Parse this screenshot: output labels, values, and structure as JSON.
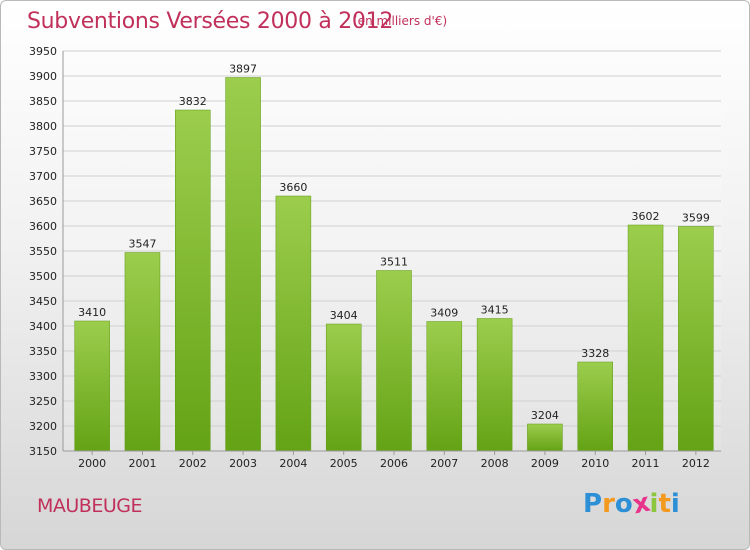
{
  "title": "Subventions Versées 2000 à 2012",
  "subtitle": "(en milliers d'€)",
  "location": "MAUBEUGE",
  "logo": {
    "text": "Proxiti",
    "letters": [
      "P",
      "r",
      "o",
      "x",
      "i",
      "t",
      "i"
    ],
    "colors": [
      "#2d8fd6",
      "#f39a1e",
      "#2d8fd6",
      "#e8338b",
      "#8cc63f",
      "#f39a1e",
      "#2d8fd6"
    ]
  },
  "colors": {
    "bar_light": "#9ccd4d",
    "bar_dark": "#64a315",
    "accent": "#c0305a"
  },
  "chart_data": {
    "type": "bar",
    "categories": [
      "2000",
      "2001",
      "2002",
      "2003",
      "2004",
      "2005",
      "2006",
      "2007",
      "2008",
      "2009",
      "2010",
      "2011",
      "2012"
    ],
    "values": [
      3410,
      3547,
      3832,
      3897,
      3660,
      3404,
      3511,
      3409,
      3415,
      3204,
      3328,
      3602,
      3599
    ],
    "ylim": [
      3150,
      3950
    ],
    "yticks": [
      3150,
      3200,
      3250,
      3300,
      3350,
      3400,
      3450,
      3500,
      3550,
      3600,
      3650,
      3700,
      3750,
      3800,
      3850,
      3900,
      3950
    ],
    "grid": true,
    "data_labels": true
  }
}
